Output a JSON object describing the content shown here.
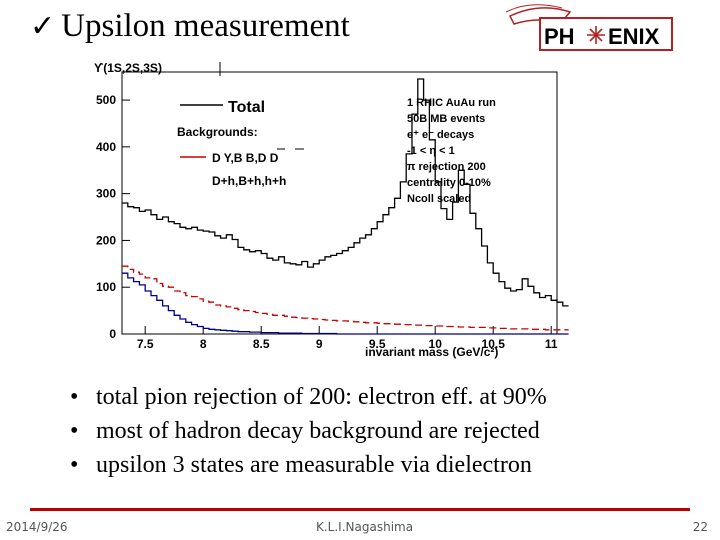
{
  "slide": {
    "title": "Upsilon measurement",
    "check_glyph": "✓",
    "logo_text_left": "PH",
    "logo_text_right": "ENIX",
    "bullets": [
      "total pion rejection of 200:  electron eff. at 90%",
      "most of hadron decay background are rejected",
      "upsilon 3 states are measurable via dielectron"
    ],
    "footer": {
      "date": "2014/9/26",
      "author": "K.L.I.Nagashima",
      "page": "22"
    }
  },
  "colors": {
    "total": "#000000",
    "bg_dy": "#cc0000",
    "bg_dh": "#00008b",
    "accent": "#c00000"
  },
  "chart_data": {
    "type": "line",
    "hist_label": "ϒ(1S,2S,3S)",
    "xlabel": "invariant mass (GeV/c²)",
    "ylabel": "",
    "xlim": [
      7.3,
      11.05
    ],
    "ylim": [
      0,
      560
    ],
    "xticks": [
      "7.5",
      "8",
      "8.5",
      "9",
      "9.5",
      "10",
      "10.5",
      "11"
    ],
    "yticks": [
      "0",
      "100",
      "200",
      "300",
      "400",
      "500"
    ],
    "bin_width": 0.05,
    "x_start": 7.3,
    "legend": {
      "total": "Total",
      "backgrounds_heading": "Backgrounds:",
      "bg_dy": "D Y,B B,D D",
      "bg_dh": "D+h,B+h,h+h"
    },
    "annotations": [
      "1 RHIC AuAu run",
      "50B MB events",
      "e⁺ e⁻ decays",
      "-1 < η < 1",
      "π rejection 200",
      "centrality 0-10%",
      "Ncoll scaled"
    ],
    "series": [
      {
        "name": "Total",
        "values": [
          280,
          272,
          270,
          262,
          265,
          255,
          245,
          250,
          240,
          236,
          228,
          225,
          228,
          222,
          220,
          218,
          210,
          205,
          212,
          202,
          185,
          180,
          176,
          178,
          172,
          162,
          158,
          165,
          152,
          150,
          148,
          155,
          143,
          150,
          158,
          165,
          168,
          172,
          178,
          185,
          195,
          205,
          212,
          225,
          240,
          255,
          270,
          290,
          325,
          385,
          470,
          545,
          500,
          415,
          325,
          268,
          245,
          282,
          350,
          320,
          258,
          225,
          188,
          152,
          130,
          112,
          98,
          92,
          95,
          118,
          102,
          88,
          78,
          82,
          72,
          68,
          60
        ]
      },
      {
        "name": "D Y,B B,D D",
        "values": [
          145,
          138,
          132,
          128,
          120,
          118,
          108,
          102,
          100,
          92,
          88,
          82,
          80,
          75,
          70,
          68,
          62,
          60,
          58,
          55,
          52,
          50,
          48,
          46,
          44,
          42,
          40,
          40,
          38,
          36,
          35,
          34,
          33,
          32,
          31,
          30,
          29,
          28,
          28,
          27,
          26,
          25,
          24,
          24,
          23,
          22,
          22,
          21,
          20,
          20,
          19,
          19,
          18,
          18,
          17,
          17,
          16,
          16,
          15,
          15,
          14,
          14,
          14,
          13,
          13,
          12,
          12,
          11,
          11,
          11,
          10,
          10,
          10,
          9,
          9,
          9,
          9
        ]
      },
      {
        "name": "D+h,B+h,h+h",
        "values": [
          130,
          120,
          112,
          105,
          92,
          82,
          72,
          60,
          50,
          40,
          32,
          25,
          20,
          16,
          12,
          10,
          9,
          8,
          7,
          6,
          5,
          5,
          4,
          4,
          3,
          3,
          3,
          2,
          2,
          2,
          2,
          1,
          1,
          1,
          1,
          1,
          1,
          0,
          0,
          0,
          0,
          0,
          0,
          0,
          0,
          0,
          0,
          0,
          0,
          0,
          0,
          0,
          0,
          0,
          0,
          0,
          0,
          0,
          0,
          0,
          0,
          0,
          0,
          0,
          0,
          0,
          0,
          0,
          0,
          0,
          0,
          0,
          0,
          0,
          0,
          0,
          0
        ]
      }
    ]
  }
}
